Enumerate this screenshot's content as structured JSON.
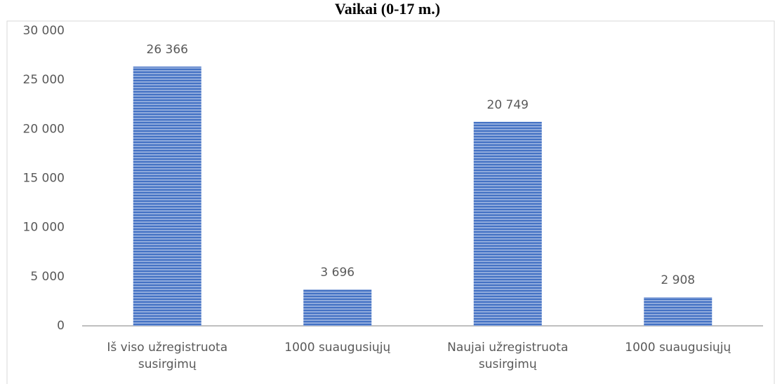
{
  "chart_data": {
    "type": "bar",
    "title": "Vaikai (0-17 m.)",
    "categories": [
      "Iš viso užregistruota susirgimų",
      "1000 suaugusiųjų",
      "Naujai užregistruota susirgimų",
      "1000 suaugusiųjų"
    ],
    "values": [
      26366,
      3696,
      20749,
      2908
    ],
    "value_labels": [
      "26 366",
      "3 696",
      "20 749",
      "2 908"
    ],
    "color": "#4472c4",
    "ylim": [
      0,
      30000
    ],
    "yticks": [
      0,
      {
        "value": 5000,
        "label": "5 000"
      },
      {
        "value": 10000,
        "label": "10 000"
      },
      {
        "value": 15000,
        "label": "15 000"
      },
      {
        "value": 20000,
        "label": "20 000"
      },
      {
        "value": 25000,
        "label": "25 000"
      },
      {
        "value": 30000,
        "label": "30 000"
      }
    ],
    "grid": false
  }
}
